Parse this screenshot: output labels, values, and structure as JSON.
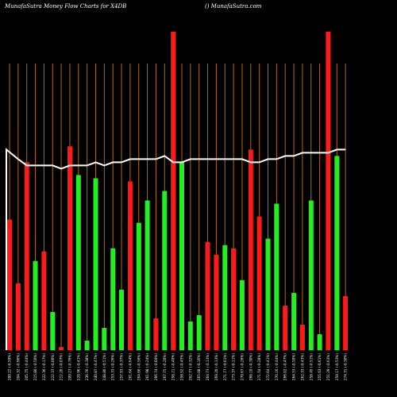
{
  "header": {
    "title": "MunafaSutra  Money Flow  Charts for X4DB",
    "credit": "() MunafaSutra.com"
  },
  "chart_data": {
    "type": "bar",
    "title": "MunafaSutra  Money Flow  Charts for X4DB",
    "background": "#000000",
    "colors": {
      "up": "#22ee22",
      "down": "#ff1a1a",
      "grid": "#b06a10",
      "line": "#ffffff",
      "text": "#ffffff"
    },
    "grid": true,
    "ylim": [
      0,
      100
    ],
    "categories": [
      "200.22 (-0.59%)",
      "204.32 (-0.96%)",
      "205.75 (-0.44%)",
      "215.80 (-0.50%)",
      "222.36 (-0.17%)",
      "222.37 (-0.00%)",
      "212.20 (-0.07%)",
      "209.27 (-0.76%)",
      "228.96 (-0.41%)",
      "236.76 (-0.38%)",
      "240.87 (-0.47%)",
      "248.86 (-0.51%)",
      "253.33 (-0.26%)",
      "257.93 (-0.37%)",
      "261.64 (-0.64%)",
      "264.66 (-0.56%)",
      "261.98 (-0.24%)",
      "266.74 (-0.04%)",
      "267.75 (-0.20%)",
      "258.21 (-0.40%)",
      "258.52 (-0.45%)",
      "262.77 (-0.32%)",
      "265.08 (-0.16%)",
      "264.73 (-0.13%)",
      "269.20 (-0.13%)",
      "271.77 (-0.01%)",
      "273.37 (-0.11%)",
      "270.67 (-0.26%)",
      "268.10 (-0.30%)",
      "271.54 (-0.28%)",
      "272.64 (-0.41%)",
      "270.16 (-0.44%)",
      "266.02 (-0.47%)",
      "264.53 (-0.50%)",
      "262.33 (-0.43%)",
      "258.45 (-0.51%)",
      "255.63 (-0.61%)",
      "251.29 (-0.63%)",
      "259.17 (-0.53%)",
      "274.31 (-0.30%)"
    ],
    "values": [
      41,
      21,
      59,
      28,
      31,
      12,
      1,
      64,
      55,
      3,
      54,
      7,
      32,
      19,
      53,
      40,
      47,
      10,
      50,
      100,
      59,
      9,
      11,
      34,
      30,
      33,
      32,
      22,
      63,
      42,
      35,
      46,
      14,
      18,
      8,
      47,
      5,
      100,
      61,
      17
    ],
    "direction": [
      "down",
      "down",
      "down",
      "up",
      "down",
      "up",
      "down",
      "down",
      "up",
      "up",
      "up",
      "up",
      "up",
      "up",
      "down",
      "up",
      "up",
      "down",
      "up",
      "down",
      "up",
      "up",
      "up",
      "down",
      "down",
      "up",
      "down",
      "up",
      "down",
      "down",
      "up",
      "up",
      "down",
      "up",
      "down",
      "up",
      "up",
      "down",
      "up",
      "down"
    ],
    "line": [
      63,
      60,
      58,
      58,
      58,
      58,
      57,
      58,
      58,
      58,
      59,
      58,
      59,
      59,
      60,
      60,
      60,
      60,
      61,
      59,
      59,
      60,
      60,
      60,
      60,
      60,
      60,
      60,
      59,
      59,
      60,
      60,
      61,
      61,
      62,
      62,
      62,
      62,
      63,
      63
    ]
  }
}
